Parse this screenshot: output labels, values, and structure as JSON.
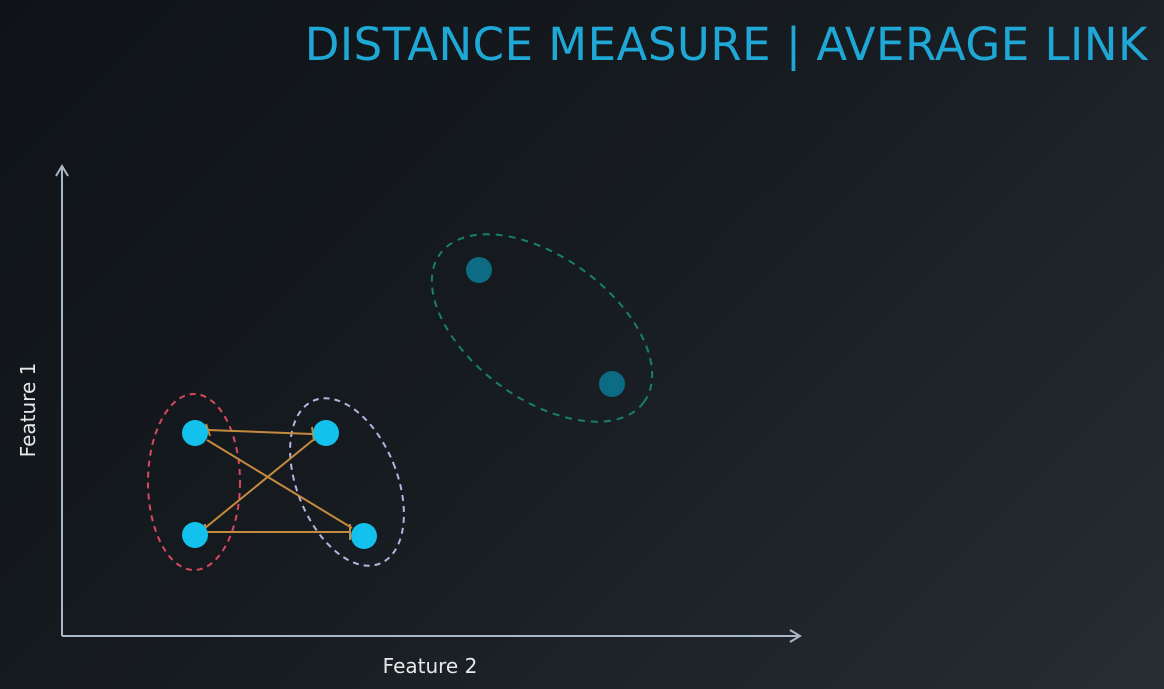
{
  "title": "DISTANCE MEASURE | AVERAGE LINK",
  "axes": {
    "x_label": "Feature 2",
    "y_label": "Feature 1"
  },
  "colors": {
    "title": "#1fa8d6",
    "axis": "#aab8c6",
    "point": "#12c2ec",
    "point_dim": "#0e6b84",
    "cluster_red": "#d8495e",
    "cluster_lavender": "#b7b3e2",
    "cluster_teal": "#17806b",
    "link_line": "#c68a3e"
  },
  "clusters": [
    {
      "name": "cluster-red",
      "color_key": "cluster_red",
      "points": [
        "p1",
        "p2"
      ]
    },
    {
      "name": "cluster-lavender",
      "color_key": "cluster_lavender",
      "points": [
        "p3",
        "p4"
      ]
    },
    {
      "name": "cluster-teal",
      "color_key": "cluster_teal",
      "points": [
        "p5",
        "p6"
      ]
    }
  ],
  "links": [
    [
      "p1",
      "p3"
    ],
    [
      "p2",
      "p4"
    ],
    [
      "p1",
      "p4"
    ],
    [
      "p3",
      "p2"
    ]
  ]
}
